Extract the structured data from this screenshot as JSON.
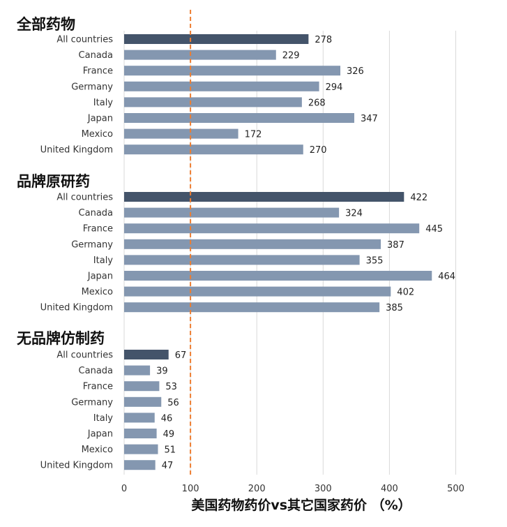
{
  "chart_data": {
    "type": "bar",
    "orientation": "horizontal",
    "xlabel": "美国药物药价vs其它国家药价 （%）",
    "xlim": [
      0,
      500
    ],
    "xticks": [
      0,
      100,
      200,
      300,
      400,
      500
    ],
    "grid": true,
    "reference_line": {
      "x": 100,
      "style": "dashed",
      "color": "#ed7d31"
    },
    "colors": {
      "highlight": "#44546a",
      "bar": "#8497b0",
      "grid": "#d9d9d9"
    },
    "groups": [
      {
        "title": "全部药物",
        "categories": [
          "All countries",
          "Canada",
          "France",
          "Germany",
          "Italy",
          "Japan",
          "Mexico",
          "United Kingdom"
        ],
        "values": [
          278,
          229,
          326,
          294,
          268,
          347,
          172,
          270
        ]
      },
      {
        "title": "品牌原研药",
        "categories": [
          "All countries",
          "Canada",
          "France",
          "Germany",
          "Italy",
          "Japan",
          "Mexico",
          "United Kingdom"
        ],
        "values": [
          422,
          324,
          445,
          387,
          355,
          464,
          402,
          385
        ]
      },
      {
        "title": "无品牌仿制药",
        "categories": [
          "All countries",
          "Canada",
          "France",
          "Germany",
          "Italy",
          "Japan",
          "Mexico",
          "United Kingdom"
        ],
        "values": [
          67,
          39,
          53,
          56,
          46,
          49,
          51,
          47
        ]
      }
    ]
  }
}
